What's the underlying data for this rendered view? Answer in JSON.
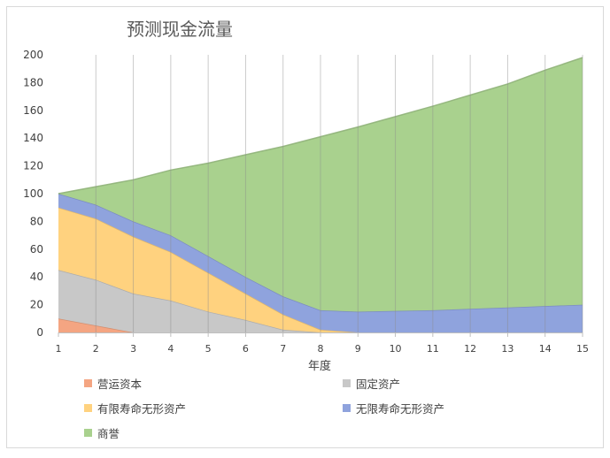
{
  "chart_data": {
    "type": "area",
    "stacked": true,
    "title": "预测现金流量",
    "xlabel": "年度",
    "ylabel": "",
    "x": [
      1,
      2,
      3,
      4,
      5,
      6,
      7,
      8,
      9,
      10,
      11,
      12,
      13,
      14,
      15
    ],
    "ylim": [
      0,
      200
    ],
    "yticks": [
      0,
      20,
      40,
      60,
      80,
      100,
      120,
      140,
      160,
      180,
      200
    ],
    "grid": "vertical",
    "legend_position": "bottom",
    "series": [
      {
        "name": "营运资本",
        "color": "#f4a582",
        "values": [
          10,
          5,
          0,
          0,
          0,
          0,
          0,
          0,
          0,
          0,
          0,
          0,
          0,
          0,
          0
        ]
      },
      {
        "name": "固定资产",
        "color": "#c8c8c8",
        "values": [
          35,
          33,
          28,
          23,
          15,
          9,
          2,
          0,
          0,
          0,
          0,
          0,
          0,
          0,
          0
        ]
      },
      {
        "name": "有限寿命无形资产",
        "color": "#ffd27f",
        "values": [
          45,
          44,
          41,
          35,
          28,
          19,
          11,
          2,
          0,
          0,
          0,
          0,
          0,
          0,
          0
        ]
      },
      {
        "name": "无限寿命无形资产",
        "color": "#8fa3dd",
        "values": [
          10,
          10,
          11,
          12,
          12,
          12,
          13,
          14,
          15,
          15.5,
          16,
          17,
          18,
          19,
          20
        ]
      },
      {
        "name": "商誉",
        "color": "#a9d18e",
        "values": [
          0,
          13,
          30,
          47,
          67,
          88,
          108,
          125,
          133,
          140,
          147,
          154,
          161,
          170,
          178
        ]
      }
    ]
  }
}
